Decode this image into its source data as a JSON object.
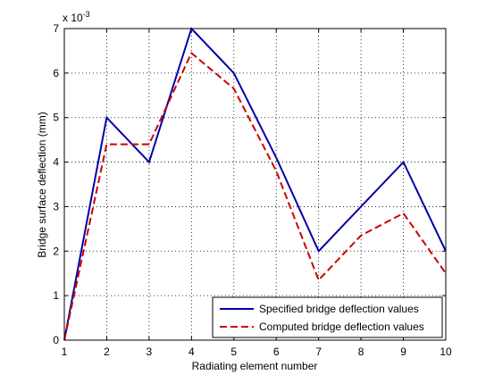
{
  "chart_data": {
    "type": "line",
    "title": "",
    "xlabel": "Radiating element number",
    "ylabel": "Bridge surface deflection (mm)",
    "y_exponent_label": "x 10",
    "y_exponent_power": "-3",
    "xlim": [
      1,
      10
    ],
    "ylim": [
      0,
      7
    ],
    "x_ticks": [
      "1",
      "2",
      "3",
      "4",
      "5",
      "6",
      "7",
      "8",
      "9",
      "10"
    ],
    "y_ticks": [
      "0",
      "1",
      "2",
      "3",
      "4",
      "5",
      "6",
      "7"
    ],
    "grid": true,
    "legend_position": "bottom-right",
    "x": [
      1,
      2,
      3,
      4,
      5,
      6,
      7,
      8,
      9,
      10
    ],
    "series": [
      {
        "name": "Specified bridge deflection values",
        "color": "#0000aa",
        "line_style": "solid",
        "values": [
          0,
          5,
          4,
          7,
          6,
          4.1,
          2,
          3,
          4,
          2
        ]
      },
      {
        "name": "Computed bridge deflection values",
        "color": "#cc0000",
        "line_style": "dashed",
        "values": [
          0,
          4.4,
          4.4,
          6.45,
          5.65,
          3.8,
          1.35,
          2.35,
          2.85,
          1.5
        ]
      }
    ]
  }
}
